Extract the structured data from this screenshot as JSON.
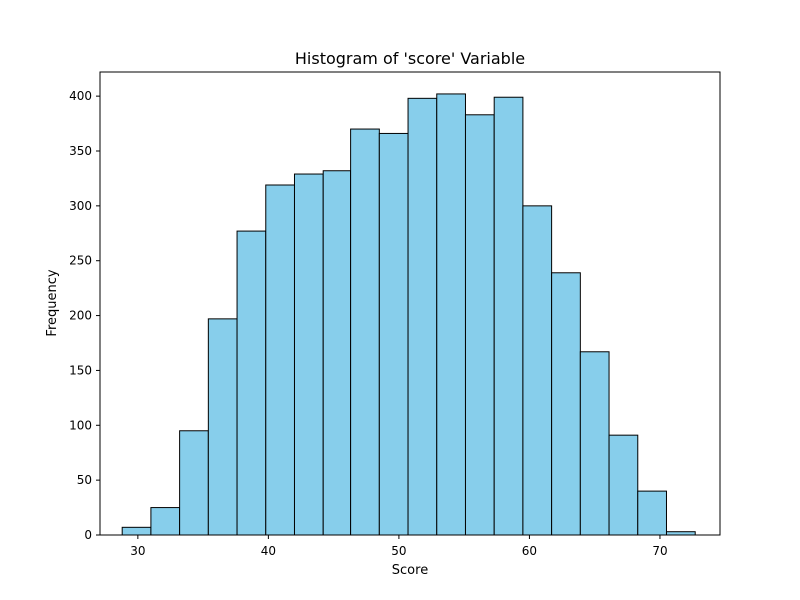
{
  "chart_data": {
    "type": "bar",
    "title": "Histogram of 'score' Variable",
    "xlabel": "Score",
    "ylabel": "Frequency",
    "xlim": [
      27.1,
      74.6
    ],
    "ylim": [
      0,
      422
    ],
    "x_ticks": [
      30,
      40,
      50,
      60,
      70
    ],
    "y_ticks": [
      0,
      50,
      100,
      150,
      200,
      250,
      300,
      350,
      400
    ],
    "grid": false,
    "bar_color": "#87ceeb",
    "edge_color": "#000000",
    "bins": [
      {
        "start": 28.8,
        "end": 31.0,
        "count": 7
      },
      {
        "start": 31.0,
        "end": 33.2,
        "count": 25
      },
      {
        "start": 33.2,
        "end": 35.4,
        "count": 95
      },
      {
        "start": 35.4,
        "end": 37.6,
        "count": 197
      },
      {
        "start": 37.6,
        "end": 39.8,
        "count": 277
      },
      {
        "start": 39.8,
        "end": 42.0,
        "count": 319
      },
      {
        "start": 42.0,
        "end": 44.2,
        "count": 329
      },
      {
        "start": 44.2,
        "end": 46.3,
        "count": 332
      },
      {
        "start": 46.3,
        "end": 48.5,
        "count": 370
      },
      {
        "start": 48.5,
        "end": 50.7,
        "count": 366
      },
      {
        "start": 50.7,
        "end": 52.9,
        "count": 398
      },
      {
        "start": 52.9,
        "end": 55.1,
        "count": 402
      },
      {
        "start": 55.1,
        "end": 57.3,
        "count": 383
      },
      {
        "start": 57.3,
        "end": 59.5,
        "count": 399
      },
      {
        "start": 59.5,
        "end": 61.7,
        "count": 300
      },
      {
        "start": 61.7,
        "end": 63.9,
        "count": 239
      },
      {
        "start": 63.9,
        "end": 66.1,
        "count": 167
      },
      {
        "start": 66.1,
        "end": 68.3,
        "count": 91
      },
      {
        "start": 68.3,
        "end": 70.5,
        "count": 40
      },
      {
        "start": 70.5,
        "end": 72.7,
        "count": 3
      }
    ]
  }
}
